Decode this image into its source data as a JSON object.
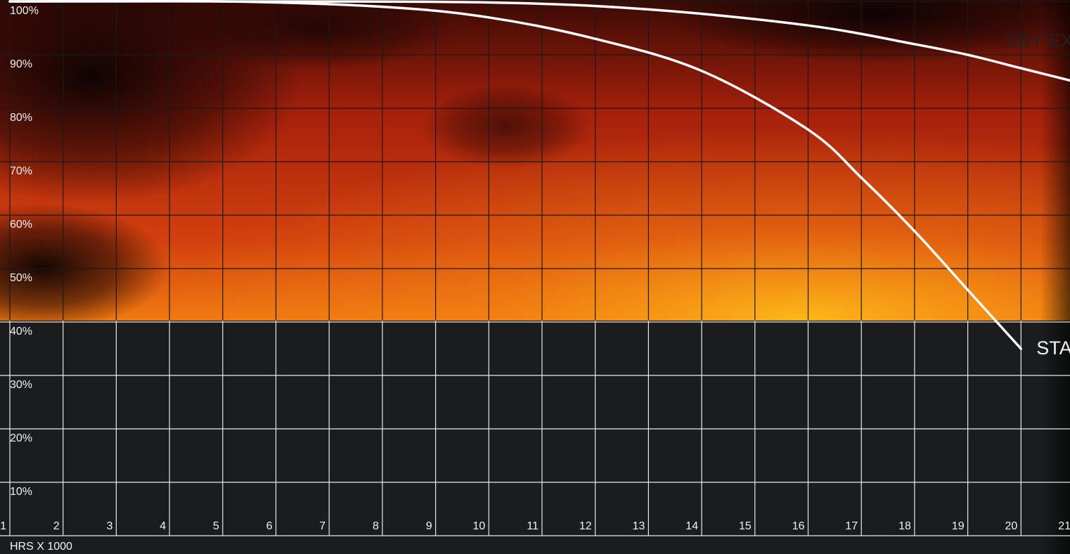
{
  "chart_data": {
    "type": "line",
    "title": "",
    "xlabel": "HRS X 1000",
    "ylabel": "",
    "x_ticks": [
      "1",
      "2",
      "3",
      "4",
      "5",
      "6",
      "7",
      "8",
      "9",
      "10",
      "11",
      "12",
      "13",
      "14",
      "15",
      "16",
      "17",
      "18",
      "19",
      "20",
      "21"
    ],
    "y_ticks": [
      "10%",
      "20%",
      "30%",
      "40%",
      "50%",
      "60%",
      "70%",
      "80%",
      "90%",
      "100%"
    ],
    "xlim": [
      1,
      21
    ],
    "ylim": [
      0,
      100
    ],
    "grid": true,
    "series": [
      {
        "name": "SBY EX",
        "label_color": "#222222",
        "x": [
          1,
          5,
          10,
          13,
          16,
          18,
          19,
          20,
          21
        ],
        "y": [
          100,
          100,
          99.8,
          98.5,
          95.5,
          92,
          90,
          87.5,
          85
        ]
      },
      {
        "name": "STAND",
        "label_color": "#f2f2f2",
        "x": [
          1,
          5,
          8,
          10,
          12,
          14,
          16,
          17,
          18,
          19,
          20
        ],
        "y": [
          100,
          100,
          99,
          97,
          93,
          87,
          76,
          67,
          57,
          46,
          35
        ]
      }
    ],
    "colors": {
      "line": "#ffffff",
      "grid_dark": "#1a1a1a",
      "grid_light": "#e8e8e8",
      "panel": "#1b1c1d"
    }
  }
}
